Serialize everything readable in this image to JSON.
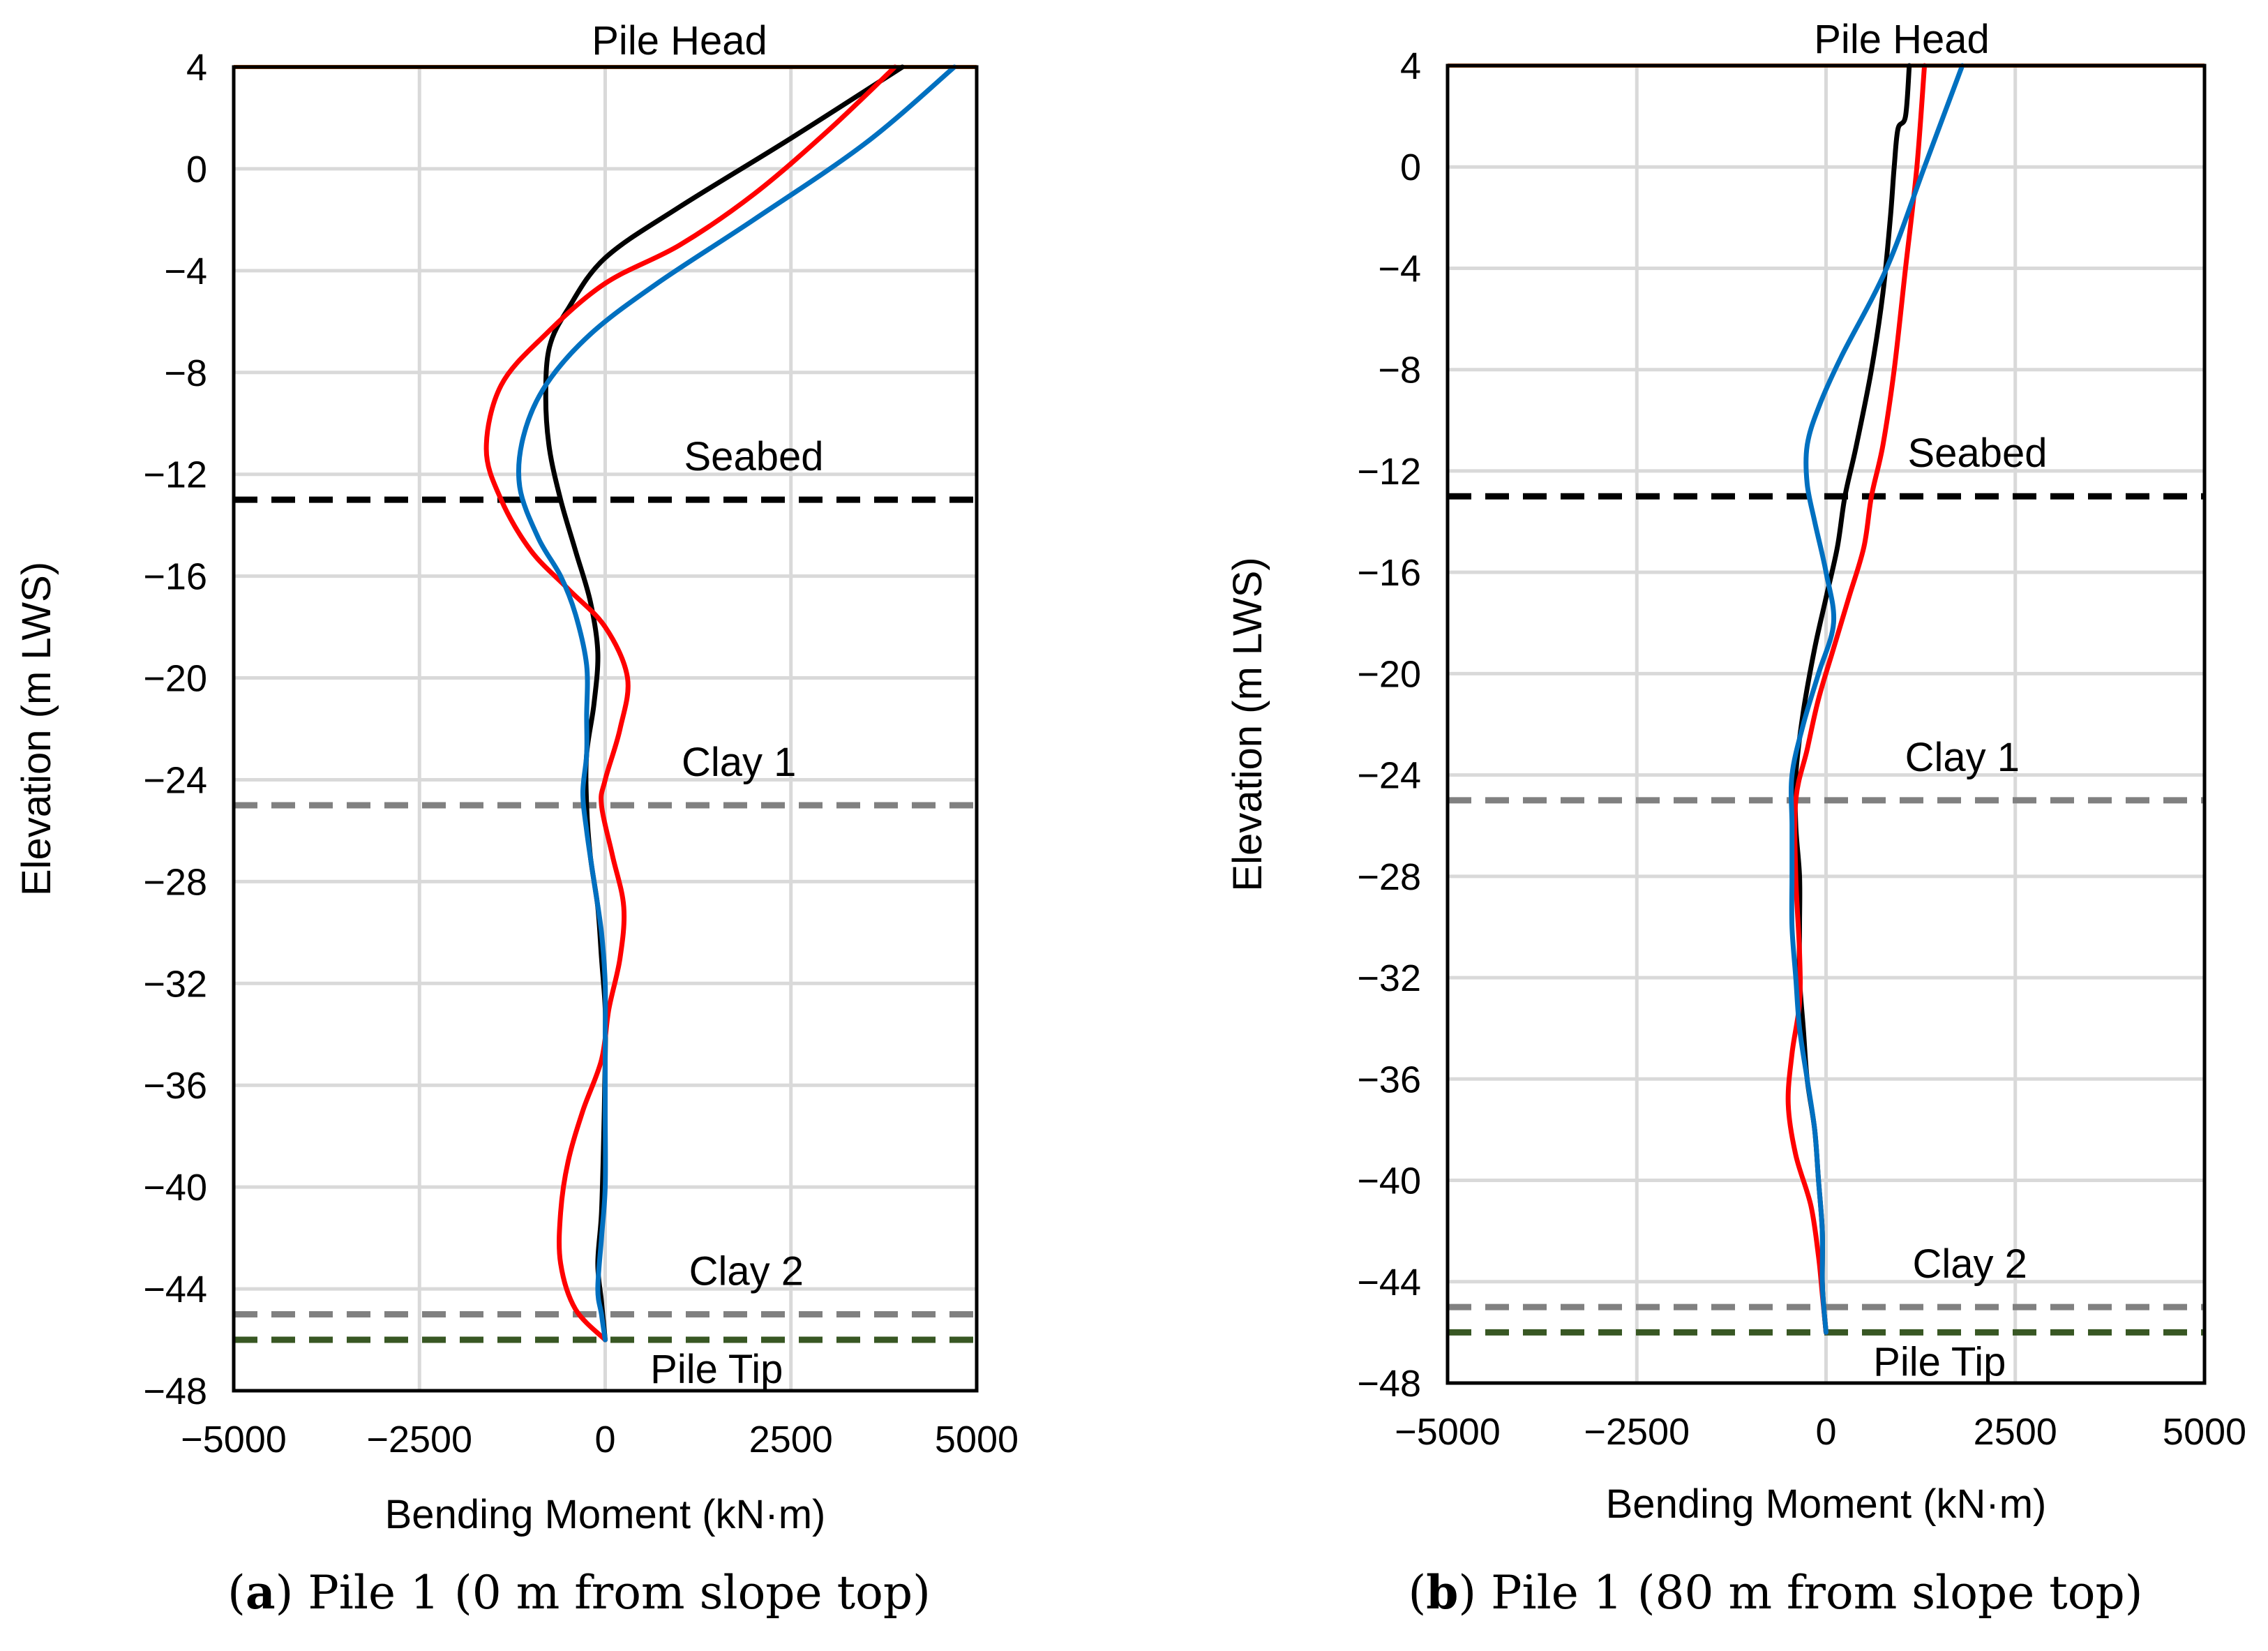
{
  "chart_data": [
    {
      "type": "line",
      "panel_label": "a",
      "caption": "Pile 1 (0 m from slope top)",
      "xlabel": "Bending Moment (kN·m)",
      "ylabel": "Elevation (m LWS)",
      "xlim": [
        -5000,
        5000
      ],
      "ylim": [
        -48,
        4
      ],
      "x_ticks": [
        -5000,
        -2500,
        0,
        2500,
        5000
      ],
      "x_tick_labels": [
        "−5000",
        "−2500",
        "0",
        "2500",
        "5000"
      ],
      "y_ticks": [
        4,
        0,
        -4,
        -8,
        -12,
        -16,
        -20,
        -24,
        -28,
        -32,
        -36,
        -40,
        -44,
        -48
      ],
      "y_tick_labels": [
        "4",
        "0",
        "−4",
        "−8",
        "−12",
        "−16",
        "−20",
        "−24",
        "−28",
        "−32",
        "−36",
        "−40",
        "−44",
        "−48"
      ],
      "grid": true,
      "reference_lines": [
        {
          "label": "Pile Head",
          "y": 4,
          "color": "#c55a11",
          "style": "solid"
        },
        {
          "label": "Seabed",
          "y": -13,
          "color": "#000000",
          "style": "dashed"
        },
        {
          "label": "Clay 1",
          "y": -25,
          "color": "#808080",
          "style": "dashed"
        },
        {
          "label": "Clay 2",
          "y": -45,
          "color": "#808080",
          "style": "dashed"
        },
        {
          "label": "Pile Tip",
          "y": -46,
          "color": "#385723",
          "style": "dashed"
        }
      ],
      "series": [
        {
          "name": "black",
          "color": "#000000",
          "points": [
            [
              4000,
              4
            ],
            [
              2500,
              1.2
            ],
            [
              1000,
              -1.5
            ],
            [
              0,
              -3.5
            ],
            [
              -500,
              -5.5
            ],
            [
              -750,
              -7
            ],
            [
              -800,
              -9
            ],
            [
              -750,
              -11
            ],
            [
              -600,
              -13
            ],
            [
              -400,
              -15
            ],
            [
              -200,
              -17
            ],
            [
              -100,
              -19
            ],
            [
              -150,
              -21
            ],
            [
              -250,
              -23
            ],
            [
              -250,
              -25
            ],
            [
              -200,
              -27
            ],
            [
              -100,
              -29
            ],
            [
              -50,
              -31
            ],
            [
              0,
              -33
            ],
            [
              0,
              -35
            ],
            [
              -20,
              -38
            ],
            [
              -50,
              -41
            ],
            [
              -100,
              -43
            ],
            [
              -50,
              -44.5
            ],
            [
              0,
              -46
            ]
          ]
        },
        {
          "name": "red",
          "color": "#ff0000",
          "points": [
            [
              3900,
              4
            ],
            [
              3000,
              1.5
            ],
            [
              2000,
              -1
            ],
            [
              1000,
              -3
            ],
            [
              0,
              -4.5
            ],
            [
              -800,
              -6.5
            ],
            [
              -1400,
              -8.5
            ],
            [
              -1600,
              -11
            ],
            [
              -1400,
              -13
            ],
            [
              -1000,
              -15
            ],
            [
              -500,
              -16.5
            ],
            [
              0,
              -18
            ],
            [
              300,
              -20
            ],
            [
              200,
              -22
            ],
            [
              0,
              -24
            ],
            [
              -50,
              -25
            ],
            [
              100,
              -27
            ],
            [
              250,
              -29
            ],
            [
              200,
              -31
            ],
            [
              50,
              -33
            ],
            [
              -50,
              -35
            ],
            [
              -300,
              -37
            ],
            [
              -500,
              -39
            ],
            [
              -600,
              -41
            ],
            [
              -600,
              -43
            ],
            [
              -400,
              -44.8
            ],
            [
              0,
              -46
            ]
          ]
        },
        {
          "name": "blue",
          "color": "#0070c0",
          "points": [
            [
              4700,
              4
            ],
            [
              3500,
              1
            ],
            [
              2000,
              -2
            ],
            [
              700,
              -4.5
            ],
            [
              -200,
              -6.5
            ],
            [
              -800,
              -8.5
            ],
            [
              -1100,
              -10.5
            ],
            [
              -1150,
              -12.5
            ],
            [
              -900,
              -14.5
            ],
            [
              -600,
              -16
            ],
            [
              -400,
              -17.5
            ],
            [
              -250,
              -19.5
            ],
            [
              -250,
              -21.5
            ],
            [
              -250,
              -23
            ],
            [
              -300,
              -24.5
            ],
            [
              -250,
              -26
            ],
            [
              -150,
              -28
            ],
            [
              -50,
              -30
            ],
            [
              0,
              -32
            ],
            [
              0,
              -34
            ],
            [
              0,
              -37
            ],
            [
              0,
              -40
            ],
            [
              -50,
              -42
            ],
            [
              -100,
              -44
            ],
            [
              -50,
              -45
            ],
            [
              0,
              -46
            ]
          ]
        }
      ]
    },
    {
      "type": "line",
      "panel_label": "b",
      "caption": "Pile 1 (80 m from slope top)",
      "xlabel": "Bending Moment (kN·m)",
      "ylabel": "Elevation (m LWS)",
      "xlim": [
        -5000,
        5000
      ],
      "ylim": [
        -48,
        4
      ],
      "x_ticks": [
        -5000,
        -2500,
        0,
        2500,
        5000
      ],
      "x_tick_labels": [
        "−5000",
        "−2500",
        "0",
        "2500",
        "5000"
      ],
      "y_ticks": [
        4,
        0,
        -4,
        -8,
        -12,
        -16,
        -20,
        -24,
        -28,
        -32,
        -36,
        -40,
        -44,
        -48
      ],
      "y_tick_labels": [
        "4",
        "0",
        "−4",
        "−8",
        "−12",
        "−16",
        "−20",
        "−24",
        "−28",
        "−32",
        "−36",
        "−40",
        "−44",
        "−48"
      ],
      "grid": true,
      "reference_lines": [
        {
          "label": "Pile Head",
          "y": 4,
          "color": "#c55a11",
          "style": "solid"
        },
        {
          "label": "Seabed",
          "y": -13,
          "color": "#000000",
          "style": "dashed"
        },
        {
          "label": "Clay 1",
          "y": -25,
          "color": "#808080",
          "style": "dashed"
        },
        {
          "label": "Clay 2",
          "y": -45,
          "color": "#808080",
          "style": "dashed"
        },
        {
          "label": "Pile Tip",
          "y": -46,
          "color": "#385723",
          "style": "dashed"
        }
      ],
      "series": [
        {
          "name": "black",
          "color": "#000000",
          "points": [
            [
              1100,
              4
            ],
            [
              1050,
              2
            ],
            [
              950,
              1.5
            ],
            [
              900,
              0
            ],
            [
              850,
              -2
            ],
            [
              750,
              -5
            ],
            [
              600,
              -8
            ],
            [
              400,
              -11
            ],
            [
              250,
              -13
            ],
            [
              150,
              -15
            ],
            [
              0,
              -17
            ],
            [
              -150,
              -19
            ],
            [
              -300,
              -21.5
            ],
            [
              -400,
              -24
            ],
            [
              -400,
              -26
            ],
            [
              -350,
              -28
            ],
            [
              -350,
              -30
            ],
            [
              -350,
              -32
            ],
            [
              -300,
              -34
            ],
            [
              -250,
              -36
            ],
            [
              -150,
              -38
            ],
            [
              -100,
              -40
            ],
            [
              -50,
              -42
            ],
            [
              -50,
              -44
            ],
            [
              -30,
              -45
            ],
            [
              0,
              -46
            ]
          ]
        },
        {
          "name": "red",
          "color": "#ff0000",
          "points": [
            [
              1300,
              4
            ],
            [
              1200,
              0
            ],
            [
              1050,
              -4
            ],
            [
              900,
              -8
            ],
            [
              750,
              -11
            ],
            [
              600,
              -13
            ],
            [
              500,
              -15
            ],
            [
              300,
              -17
            ],
            [
              100,
              -19
            ],
            [
              -100,
              -21
            ],
            [
              -250,
              -23
            ],
            [
              -400,
              -25
            ],
            [
              -400,
              -28
            ],
            [
              -350,
              -31
            ],
            [
              -350,
              -33
            ],
            [
              -450,
              -35
            ],
            [
              -500,
              -37
            ],
            [
              -400,
              -39
            ],
            [
              -200,
              -41
            ],
            [
              -100,
              -43
            ],
            [
              -50,
              -44.5
            ],
            [
              0,
              -46
            ]
          ]
        },
        {
          "name": "blue",
          "color": "#0070c0",
          "points": [
            [
              1800,
              4
            ],
            [
              1300,
              0
            ],
            [
              800,
              -4
            ],
            [
              200,
              -7.5
            ],
            [
              -100,
              -9.5
            ],
            [
              -250,
              -11
            ],
            [
              -250,
              -12.5
            ],
            [
              -150,
              -14
            ],
            [
              0,
              -16
            ],
            [
              100,
              -18
            ],
            [
              -100,
              -20
            ],
            [
              -300,
              -22
            ],
            [
              -450,
              -24
            ],
            [
              -450,
              -26
            ],
            [
              -450,
              -28
            ],
            [
              -450,
              -30
            ],
            [
              -400,
              -32
            ],
            [
              -350,
              -34
            ],
            [
              -250,
              -36
            ],
            [
              -150,
              -38
            ],
            [
              -100,
              -40
            ],
            [
              -50,
              -42
            ],
            [
              -50,
              -44
            ],
            [
              -30,
              -45
            ],
            [
              0,
              -46
            ]
          ]
        }
      ]
    }
  ]
}
